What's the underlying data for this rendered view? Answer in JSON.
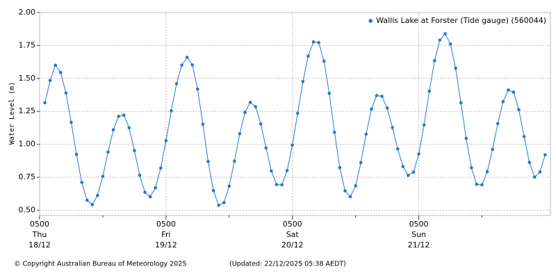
{
  "chart_data": {
    "type": "line",
    "ylabel": "Water Level (m)",
    "legend": "top-right",
    "grid": true,
    "series": [
      {
        "name": "Wallis Lake at Forster (Tide gauge) (560044)",
        "color": "#1f78d8",
        "values": [
          1.315,
          1.484,
          1.6,
          1.545,
          1.389,
          1.167,
          0.924,
          0.711,
          0.576,
          0.542,
          0.612,
          0.757,
          0.941,
          1.11,
          1.212,
          1.221,
          1.125,
          0.953,
          0.765,
          0.636,
          0.602,
          0.67,
          0.82,
          1.027,
          1.254,
          1.459,
          1.601,
          1.66,
          1.602,
          1.419,
          1.152,
          0.87,
          0.649,
          0.537,
          0.557,
          0.682,
          0.873,
          1.08,
          1.242,
          1.318,
          1.285,
          1.154,
          0.972,
          0.798,
          0.694,
          0.693,
          0.801,
          0.994,
          1.235,
          1.476,
          1.669,
          1.777,
          1.772,
          1.631,
          1.387,
          1.091,
          0.823,
          0.647,
          0.602,
          0.685,
          0.861,
          1.077,
          1.266,
          1.37,
          1.364,
          1.275,
          1.127,
          0.965,
          0.831,
          0.764,
          0.789,
          0.926,
          1.147,
          1.403,
          1.635,
          1.791,
          1.839,
          1.762,
          1.577,
          1.315,
          1.045,
          0.822,
          0.696,
          0.693,
          0.792,
          0.962,
          1.157,
          1.323,
          1.412,
          1.396,
          1.262,
          1.059,
          0.863,
          0.751,
          0.79,
          0.92
        ]
      }
    ],
    "x": [
      "18/12 06:00",
      "18/12 07:00",
      "18/12 08:00",
      "18/12 09:00",
      "18/12 10:00",
      "18/12 11:00",
      "18/12 12:00",
      "18/12 13:00",
      "18/12 14:00",
      "18/12 15:00",
      "18/12 16:00",
      "18/12 17:00",
      "18/12 18:00",
      "18/12 19:00",
      "18/12 20:00",
      "18/12 21:00",
      "18/12 22:00",
      "18/12 23:00",
      "19/12 00:00",
      "19/12 01:00",
      "19/12 02:00",
      "19/12 03:00",
      "19/12 04:00",
      "19/12 05:00",
      "19/12 06:00",
      "19/12 07:00",
      "19/12 08:00",
      "19/12 09:00",
      "19/12 10:00",
      "19/12 11:00",
      "19/12 12:00",
      "19/12 13:00",
      "19/12 14:00",
      "19/12 15:00",
      "19/12 16:00",
      "19/12 17:00",
      "19/12 18:00",
      "19/12 19:00",
      "19/12 20:00",
      "19/12 21:00",
      "19/12 22:00",
      "19/12 23:00",
      "20/12 00:00",
      "20/12 01:00",
      "20/12 02:00",
      "20/12 03:00",
      "20/12 04:00",
      "20/12 05:00",
      "20/12 06:00",
      "20/12 07:00",
      "20/12 08:00",
      "20/12 09:00",
      "20/12 10:00",
      "20/12 11:00",
      "20/12 12:00",
      "20/12 13:00",
      "20/12 14:00",
      "20/12 15:00",
      "20/12 16:00",
      "20/12 17:00",
      "20/12 18:00",
      "20/12 19:00",
      "20/12 20:00",
      "20/12 21:00",
      "20/12 22:00",
      "20/12 23:00",
      "21/12 00:00",
      "21/12 01:00",
      "21/12 02:00",
      "21/12 03:00",
      "21/12 04:00",
      "21/12 05:00",
      "21/12 06:00",
      "21/12 07:00",
      "21/12 08:00",
      "21/12 09:00",
      "21/12 10:00",
      "21/12 11:00",
      "21/12 12:00",
      "21/12 13:00",
      "21/12 14:00",
      "21/12 15:00",
      "21/12 16:00",
      "21/12 17:00",
      "21/12 18:00",
      "21/12 19:00",
      "21/12 20:00",
      "21/12 21:00",
      "21/12 22:00",
      "21/12 23:00",
      "22/12 00:00",
      "22/12 01:00",
      "22/12 02:00",
      "22/12 03:00",
      "22/12 04:00",
      "22/12 05:00"
    ],
    "xlim": [
      "18/12 05:00",
      "22/12 06:00"
    ],
    "xticks": [
      {
        "value": "18/12 05:00",
        "label": [
          "0500",
          "Thu",
          "18/12"
        ]
      },
      {
        "value": "19/12 05:00",
        "label": [
          "0500",
          "Fri",
          "19/12"
        ]
      },
      {
        "value": "20/12 05:00",
        "label": [
          "0500",
          "Sat",
          "20/12"
        ]
      },
      {
        "value": "21/12 05:00",
        "label": [
          "0500",
          "Sun",
          "21/12"
        ]
      }
    ],
    "xminorticks": [
      "18/12 17:00",
      "19/12 17:00",
      "20/12 17:00",
      "21/12 17:00"
    ],
    "ylim": [
      0.46,
      2.0
    ],
    "yticks": [
      {
        "value": 0.5,
        "label": "0.50"
      },
      {
        "value": 0.75,
        "label": "0.75"
      },
      {
        "value": 1.0,
        "label": "1.00"
      },
      {
        "value": 1.25,
        "label": "1.25"
      },
      {
        "value": 1.5,
        "label": "1.50"
      },
      {
        "value": 1.75,
        "label": "1.75"
      },
      {
        "value": 2.0,
        "label": "2.00"
      }
    ],
    "copyright": "© Copyright Australian Bureau of Meteorology 2025",
    "updated": "(Updated: 22/12/2025 05:38 AEDT)"
  }
}
